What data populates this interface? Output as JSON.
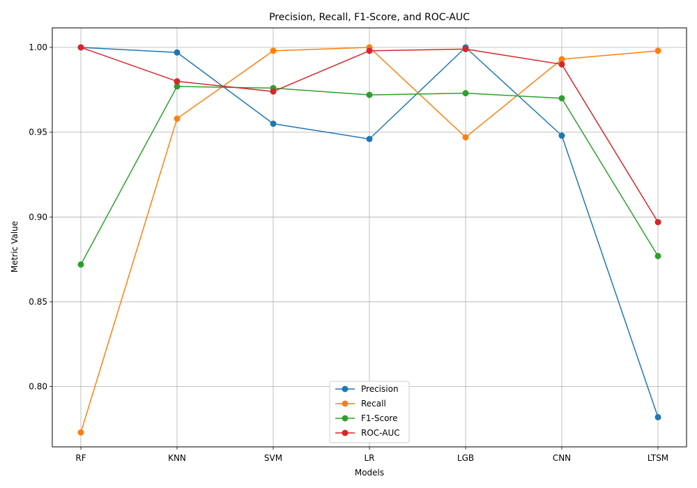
{
  "chart_data": {
    "type": "line",
    "title": "Precision, Recall, F1-Score, and ROC-AUC",
    "xlabel": "Models",
    "ylabel": "Metric Value",
    "categories": [
      "RF",
      "KNN",
      "SVM",
      "LR",
      "LGB",
      "CNN",
      "LTSM"
    ],
    "ylim": [
      0.7645,
      1.0115
    ],
    "yticks": [
      "0.80",
      "0.85",
      "0.90",
      "0.95",
      "1.00"
    ],
    "grid": true,
    "legend_position": "bottom-center",
    "series": [
      {
        "name": "Precision",
        "color": "#1f77b4",
        "values": [
          1.0,
          0.997,
          0.955,
          0.946,
          1.0,
          0.948,
          0.782
        ]
      },
      {
        "name": "Recall",
        "color": "#ff7f0e",
        "values": [
          0.773,
          0.958,
          0.998,
          1.0,
          0.947,
          0.993,
          0.998
        ]
      },
      {
        "name": "F1-Score",
        "color": "#2ca02c",
        "values": [
          0.872,
          0.977,
          0.976,
          0.972,
          0.973,
          0.97,
          0.877
        ]
      },
      {
        "name": "ROC-AUC",
        "color": "#d62728",
        "values": [
          1.0,
          0.98,
          0.974,
          0.998,
          0.999,
          0.99,
          0.897
        ]
      }
    ]
  }
}
